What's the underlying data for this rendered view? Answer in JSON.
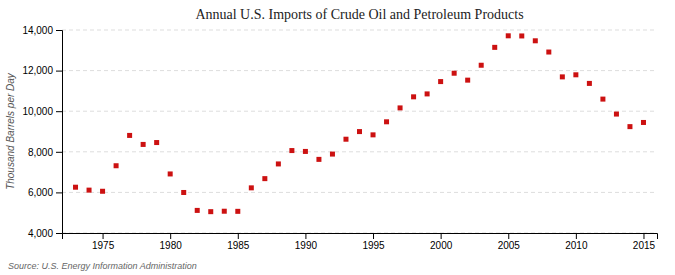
{
  "chart_data": {
    "type": "scatter",
    "title": "Annual U.S. Imports of Crude Oil and Petroleum Products",
    "y_label": "Thousand Barrels per Day",
    "annotations": [
      "Source: U.S. Energy Information Administration"
    ],
    "x": [
      1973,
      1974,
      1975,
      1976,
      1977,
      1978,
      1979,
      1980,
      1981,
      1982,
      1983,
      1984,
      1985,
      1986,
      1987,
      1988,
      1989,
      1990,
      1991,
      1992,
      1993,
      1994,
      1995,
      1996,
      1997,
      1998,
      1999,
      2000,
      2001,
      2002,
      2003,
      2004,
      2005,
      2006,
      2007,
      2008,
      2009,
      2010,
      2011,
      2012,
      2013,
      2014,
      2015
    ],
    "values": [
      6256,
      6112,
      6056,
      7313,
      8807,
      8363,
      8456,
      6909,
      5996,
      5113,
      5051,
      5073,
      5067,
      6224,
      6678,
      7402,
      8061,
      8018,
      7627,
      7888,
      8620,
      8996,
      8835,
      9478,
      10162,
      10708,
      10852,
      11459,
      11871,
      11530,
      12264,
      13145,
      13714,
      13707,
      13468,
      12915,
      11691,
      11793,
      11369,
      10596,
      9859,
      9240,
      9445
    ],
    "color": "#cc1111",
    "marker": "square",
    "xlim": [
      1972,
      2016
    ],
    "xticks": [
      1975,
      1980,
      1985,
      1990,
      1995,
      2000,
      2005,
      2010,
      2015
    ],
    "ylim": [
      4000,
      14000
    ],
    "yticks": [
      {
        "value": 4000,
        "label": "4,000"
      },
      {
        "value": 6000,
        "label": "6,000"
      },
      {
        "value": 8000,
        "label": "8,000"
      },
      {
        "value": 10000,
        "label": "10,000"
      },
      {
        "value": 12000,
        "label": "12,000"
      },
      {
        "value": 14000,
        "label": "14,000"
      }
    ],
    "grid": "y"
  }
}
